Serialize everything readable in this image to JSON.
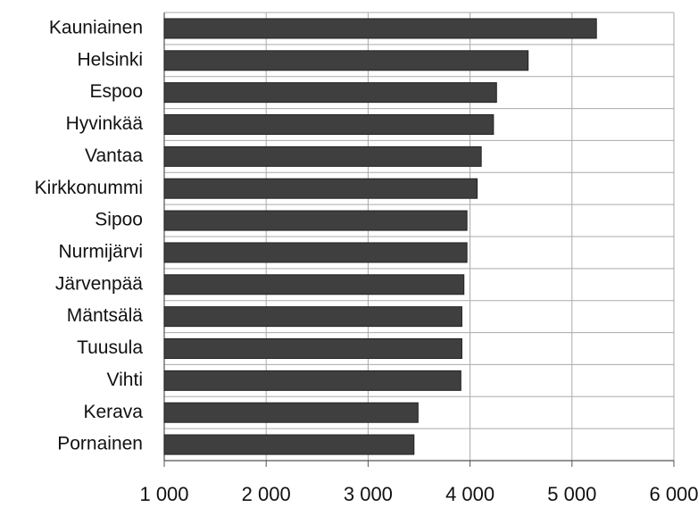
{
  "chart_data": {
    "type": "hbar",
    "categories": [
      "Kauniainen",
      "Helsinki",
      "Espoo",
      "Hyvinkää",
      "Vantaa",
      "Kirkkonummi",
      "Sipoo",
      "Nurmijärvi",
      "Järvenpää",
      "Mäntsälä",
      "Tuusula",
      "Vihti",
      "Kerava",
      "Pornainen"
    ],
    "values": [
      5240,
      4570,
      4260,
      4230,
      4110,
      4070,
      3970,
      3970,
      3940,
      3920,
      3920,
      3910,
      3490,
      3450
    ],
    "color": "#3f3f3f",
    "xlim": [
      1000,
      6000
    ],
    "xticks": [
      {
        "value": 1000,
        "label": "1 000"
      },
      {
        "value": 2000,
        "label": "2 000"
      },
      {
        "value": 3000,
        "label": "3 000"
      },
      {
        "value": 4000,
        "label": "4 000"
      },
      {
        "value": 5000,
        "label": "5 000"
      },
      {
        "value": 6000,
        "label": "6 000"
      }
    ],
    "grid": true
  }
}
